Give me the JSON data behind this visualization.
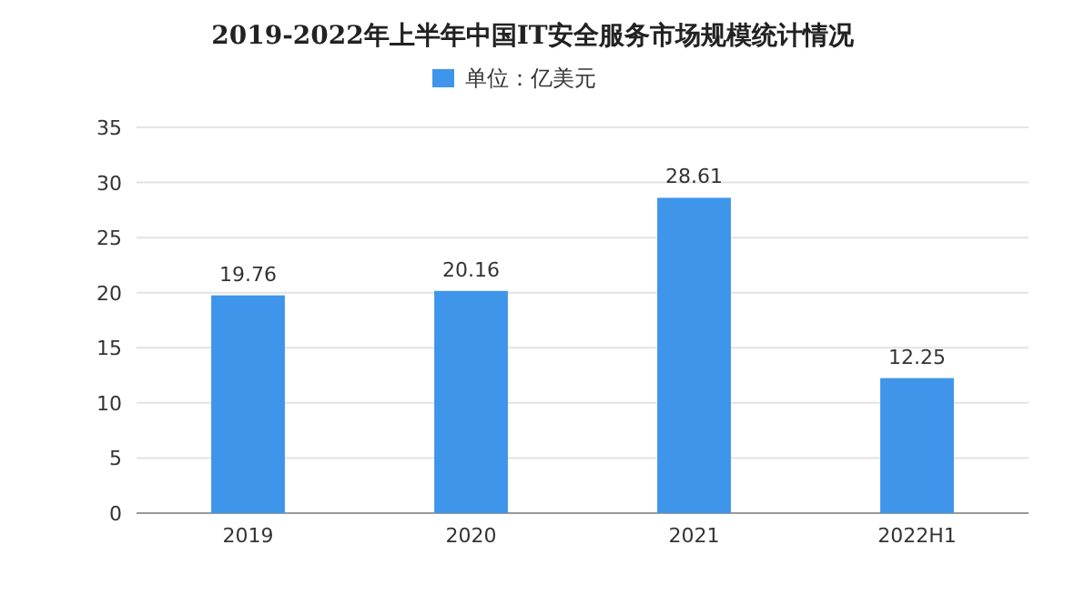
{
  "chart_data": {
    "type": "bar",
    "title": "2019-2022年上半年中国IT安全服务市场规模统计情况",
    "categories": [
      "2019",
      "2020",
      "2021",
      "2022H1"
    ],
    "series": [
      {
        "name": "单位：亿美元",
        "color": "#3e95ea",
        "values": [
          19.76,
          20.16,
          28.61,
          12.25
        ]
      }
    ],
    "ylim": [
      0,
      35
    ],
    "yticks": [
      0,
      5,
      10,
      15,
      20,
      25,
      30,
      35
    ],
    "grid": "y",
    "legend": "top",
    "data_labels": true
  }
}
